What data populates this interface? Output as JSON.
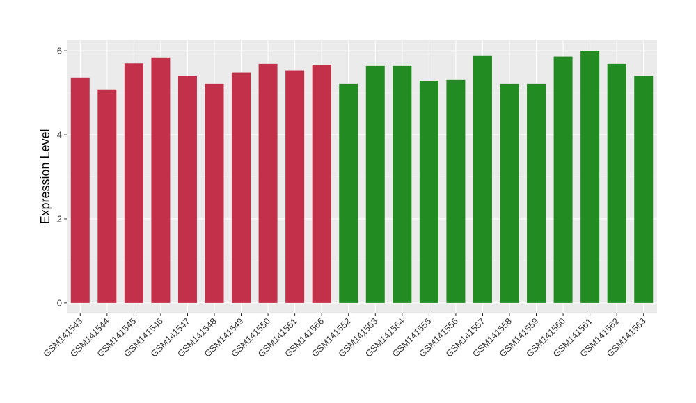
{
  "chart_data": {
    "type": "bar",
    "ylabel": "Expression Level",
    "xlabel": "",
    "ylim": [
      -0.25,
      6.25
    ],
    "yticks": [
      0,
      2,
      4,
      6
    ],
    "grid": true,
    "panel_background": "#ebebeb",
    "colors": {
      "group_a": "#c3304a",
      "group_b": "#228b22"
    },
    "categories": [
      "GSM141543",
      "GSM141544",
      "GSM141545",
      "GSM141546",
      "GSM141547",
      "GSM141548",
      "GSM141549",
      "GSM141550",
      "GSM141551",
      "GSM141566",
      "GSM141552",
      "GSM141553",
      "GSM141554",
      "GSM141555",
      "GSM141556",
      "GSM141557",
      "GSM141558",
      "GSM141559",
      "GSM141560",
      "GSM141561",
      "GSM141562",
      "GSM141563"
    ],
    "values": [
      5.36,
      5.08,
      5.7,
      5.84,
      5.39,
      5.21,
      5.48,
      5.69,
      5.53,
      5.67,
      5.21,
      5.64,
      5.64,
      5.29,
      5.31,
      5.89,
      5.21,
      5.21,
      5.86,
      6.0,
      5.69,
      5.4
    ],
    "groups": [
      "group_a",
      "group_a",
      "group_a",
      "group_a",
      "group_a",
      "group_a",
      "group_a",
      "group_a",
      "group_a",
      "group_a",
      "group_b",
      "group_b",
      "group_b",
      "group_b",
      "group_b",
      "group_b",
      "group_b",
      "group_b",
      "group_b",
      "group_b",
      "group_b",
      "group_b"
    ]
  }
}
